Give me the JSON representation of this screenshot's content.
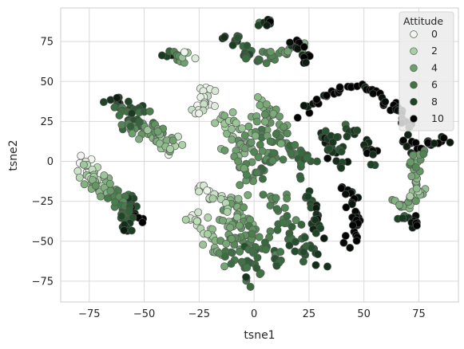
{
  "chart_data": {
    "type": "scatter",
    "xlabel": "tsne1",
    "ylabel": "tsne2",
    "xlim": [
      -88,
      93
    ],
    "ylim": [
      -88,
      96
    ],
    "xticks": [
      -75,
      -50,
      -25,
      0,
      25,
      50,
      75
    ],
    "yticks": [
      75,
      50,
      25,
      0,
      -25,
      -50,
      -75
    ],
    "xtick_labels": [
      "−75",
      "−50",
      "−25",
      "0",
      "25",
      "50",
      "75"
    ],
    "ytick_labels": [
      "75",
      "50",
      "25",
      "0",
      "−25",
      "−50",
      "−75"
    ],
    "grid": true,
    "legend": {
      "title": "Attitude",
      "placement": "top-right",
      "entries": [
        {
          "label": "0",
          "color": "#f0f5ee"
        },
        {
          "label": "2",
          "color": "#a6cfa2"
        },
        {
          "label": "4",
          "color": "#6c9f6b"
        },
        {
          "label": "6",
          "color": "#3f7444"
        },
        {
          "label": "8",
          "color": "#1b4224"
        },
        {
          "label": "10",
          "color": "#000000"
        }
      ]
    },
    "colorscale": [
      "#f0f5ee",
      "#a6cfa2",
      "#6c9f6b",
      "#3f7444",
      "#1b4224",
      "#000000"
    ],
    "value_range": [
      0,
      10
    ],
    "clusters": [
      {
        "path": [
          [
            -78,
            1
          ],
          [
            -72,
            -10
          ],
          [
            -66,
            -18
          ],
          [
            -60,
            -24
          ],
          [
            -55,
            -30
          ],
          [
            -53,
            -38
          ]
        ],
        "v0": 0,
        "v1": 10,
        "n": 60,
        "spread": 2.6
      },
      {
        "path": [
          [
            -78,
            -8
          ],
          [
            -70,
            -16
          ],
          [
            -63,
            -24
          ],
          [
            -58,
            -34
          ],
          [
            -57,
            -44
          ]
        ],
        "v0": 1,
        "v1": 9,
        "n": 45,
        "spread": 2.4
      },
      {
        "path": [
          [
            -63,
            40
          ],
          [
            -60,
            32
          ],
          [
            -56,
            24
          ],
          [
            -50,
            18
          ],
          [
            -42,
            12
          ],
          [
            -36,
            9
          ]
        ],
        "v0": 9,
        "v1": 1,
        "n": 60,
        "spread": 2.6
      },
      {
        "path": [
          [
            -55,
            35
          ],
          [
            -48,
            24
          ],
          [
            -40,
            16
          ],
          [
            -35,
            8
          ]
        ],
        "v0": 8,
        "v1": 2,
        "n": 30,
        "spread": 2.2
      },
      {
        "path": [
          [
            -40,
            68
          ],
          [
            -35,
            66
          ],
          [
            -30,
            64
          ]
        ],
        "v0": 8,
        "v1": 1,
        "n": 16,
        "spread": 1.8
      },
      {
        "path": [
          [
            -20,
            46
          ],
          [
            -24,
            38
          ],
          [
            -26,
            30
          ]
        ],
        "v0": 0,
        "v1": 1,
        "n": 20,
        "spread": 2.0
      },
      {
        "path": [
          [
            -25,
            -14
          ],
          [
            -20,
            -20
          ],
          [
            -14,
            -24
          ]
        ],
        "v0": 0,
        "v1": 2,
        "n": 18,
        "spread": 2.0
      },
      {
        "path": [
          [
            -30,
            -32
          ],
          [
            -24,
            -40
          ],
          [
            -20,
            -50
          ],
          [
            -17,
            -62
          ]
        ],
        "v0": 0,
        "v1": 4,
        "n": 28,
        "spread": 2.4
      },
      {
        "path": [
          [
            -16,
            30
          ],
          [
            -10,
            20
          ],
          [
            -6,
            10
          ],
          [
            -4,
            0
          ],
          [
            -3,
            -10
          ]
        ],
        "v0": 2,
        "v1": 5,
        "n": 50,
        "spread": 3.0
      },
      {
        "path": [
          [
            -10,
            -20
          ],
          [
            -6,
            -36
          ],
          [
            -3,
            -52
          ],
          [
            -2,
            -66
          ],
          [
            -4,
            -74
          ]
        ],
        "v0": 3,
        "v1": 7,
        "n": 50,
        "spread": 3.0
      },
      {
        "path": [
          [
            -14,
            -30
          ],
          [
            -10,
            -48
          ],
          [
            -8,
            -64
          ]
        ],
        "v0": 2,
        "v1": 6,
        "n": 30,
        "spread": 2.6
      },
      {
        "path": [
          [
            4,
            36
          ],
          [
            10,
            26
          ],
          [
            14,
            14
          ],
          [
            18,
            4
          ],
          [
            24,
            -4
          ]
        ],
        "v0": 3,
        "v1": 7,
        "n": 55,
        "spread": 3.2
      },
      {
        "path": [
          [
            2,
            30
          ],
          [
            4,
            14
          ],
          [
            6,
            0
          ],
          [
            4,
            -10
          ]
        ],
        "v0": 4,
        "v1": 6,
        "n": 40,
        "spread": 3.0
      },
      {
        "path": [
          [
            8,
            -20
          ],
          [
            12,
            -34
          ],
          [
            18,
            -46
          ],
          [
            24,
            -56
          ],
          [
            28,
            -64
          ]
        ],
        "v0": 4,
        "v1": 8,
        "n": 45,
        "spread": 2.8
      },
      {
        "path": [
          [
            2,
            -40
          ],
          [
            6,
            -54
          ],
          [
            12,
            -66
          ]
        ],
        "v0": 5,
        "v1": 7,
        "n": 20,
        "spread": 2.4
      },
      {
        "path": [
          [
            -14,
            76
          ],
          [
            -8,
            79
          ],
          [
            -5,
            70
          ],
          [
            -2,
            64
          ],
          [
            6,
            64
          ],
          [
            14,
            68
          ],
          [
            22,
            74
          ]
        ],
        "v0": 8,
        "v1": 4,
        "n": 45,
        "spread": 2.0
      },
      {
        "path": [
          [
            3,
            86
          ],
          [
            5,
            88
          ],
          [
            7,
            86
          ]
        ],
        "v0": 7,
        "v1": 9,
        "n": 8,
        "spread": 1.2
      },
      {
        "path": [
          [
            18,
            76
          ],
          [
            22,
            70
          ],
          [
            24,
            64
          ]
        ],
        "v0": 9,
        "v1": 10,
        "n": 14,
        "spread": 1.6
      },
      {
        "path": [
          [
            22,
            30
          ],
          [
            30,
            40
          ],
          [
            40,
            45
          ],
          [
            48,
            47
          ],
          [
            56,
            44
          ],
          [
            64,
            34
          ],
          [
            70,
            22
          ]
        ],
        "v0": 10,
        "v1": 10,
        "n": 50,
        "spread": 1.4
      },
      {
        "path": [
          [
            32,
            18
          ],
          [
            34,
            10
          ],
          [
            36,
            4
          ]
        ],
        "v0": 8,
        "v1": 9,
        "n": 14,
        "spread": 1.8
      },
      {
        "path": [
          [
            38,
            16
          ],
          [
            40,
            4
          ],
          [
            39,
            -4
          ]
        ],
        "v0": 8,
        "v1": 8,
        "n": 14,
        "spread": 1.8
      },
      {
        "path": [
          [
            44,
            22
          ],
          [
            48,
            16
          ],
          [
            52,
            8
          ],
          [
            56,
            0
          ]
        ],
        "v0": 8,
        "v1": 9,
        "n": 20,
        "spread": 1.6
      },
      {
        "path": [
          [
            24,
            -20
          ],
          [
            27,
            -34
          ],
          [
            30,
            -46
          ]
        ],
        "v0": 8,
        "v1": 9,
        "n": 20,
        "spread": 1.6
      },
      {
        "path": [
          [
            40,
            -16
          ],
          [
            44,
            -22
          ],
          [
            46,
            -32
          ],
          [
            46,
            -44
          ],
          [
            44,
            -52
          ]
        ],
        "v0": 10,
        "v1": 10,
        "n": 30,
        "spread": 1.6
      },
      {
        "path": [
          [
            68,
            14
          ],
          [
            75,
            8
          ],
          [
            80,
            12
          ],
          [
            88,
            13
          ]
        ],
        "v0": 9,
        "v1": 10,
        "n": 22,
        "spread": 1.8
      },
      {
        "path": [
          [
            73,
            -16
          ],
          [
            72,
            -8
          ],
          [
            74,
            2
          ],
          [
            76,
            6
          ]
        ],
        "v0": 3,
        "v1": 5,
        "n": 20,
        "spread": 1.8
      },
      {
        "path": [
          [
            64,
            -26
          ],
          [
            70,
            -28
          ],
          [
            74,
            -24
          ],
          [
            76,
            -18
          ]
        ],
        "v0": 4,
        "v1": 2,
        "n": 24,
        "spread": 1.8
      },
      {
        "path": [
          [
            68,
            -34
          ],
          [
            72,
            -38
          ],
          [
            76,
            -40
          ]
        ],
        "v0": 8,
        "v1": 10,
        "n": 14,
        "spread": 1.4
      }
    ]
  }
}
